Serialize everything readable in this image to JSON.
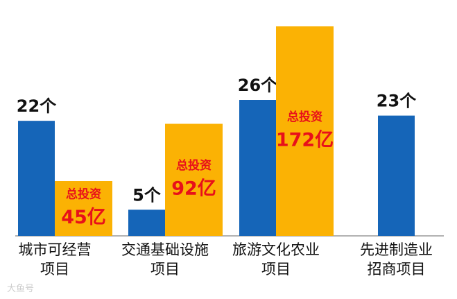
{
  "chart_data": {
    "type": "bar",
    "categories": [
      "城市可经营\n项目",
      "交通基础设施\n项目",
      "旅游文化农业\n项目",
      "先进制造业\n招商项目"
    ],
    "series": [
      {
        "color": "#1565b8",
        "values": [
          22,
          5,
          26,
          23
        ],
        "value_labels": [
          "22个",
          "5个",
          "26个",
          "23个"
        ]
      },
      {
        "color": "#fbb204",
        "values": [
          45,
          92,
          172,
          null
        ],
        "value_labels": [
          "45亿",
          "92亿",
          "172亿",
          null
        ],
        "label_prefix": "总投资"
      }
    ],
    "watermark": "大鱼号"
  }
}
